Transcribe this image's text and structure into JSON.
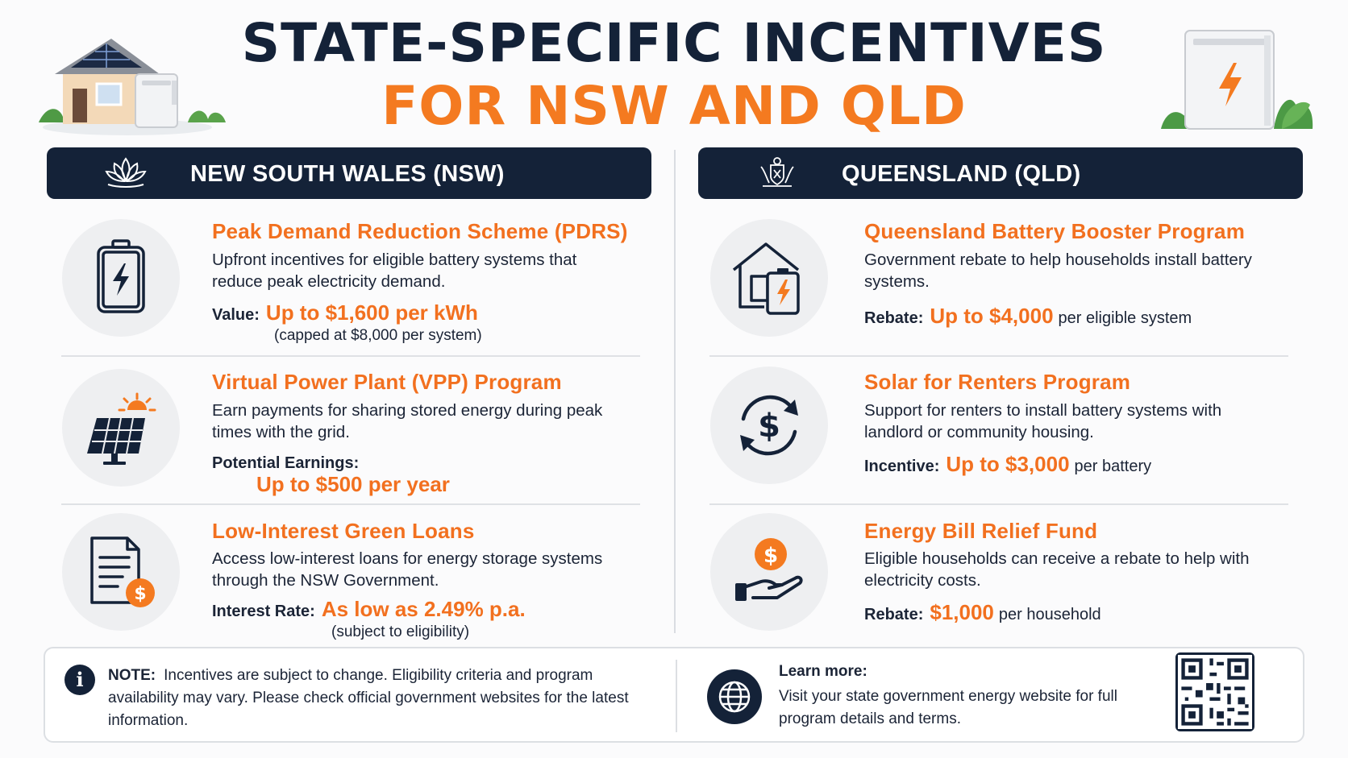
{
  "title": {
    "line1": "STATE-SPECIFIC INCENTIVES",
    "line2": "FOR NSW AND QLD"
  },
  "colors": {
    "navy": "#142238",
    "orange": "#f2701f",
    "circle_bg": "#eeeff1"
  },
  "nsw": {
    "header": "NEW SOUTH WALES (NSW)",
    "header_icon": "waratah-flower-icon",
    "items": [
      {
        "icon": "battery-icon",
        "title": "Peak Demand Reduction Scheme (PDRS)",
        "desc": "Upfront incentives for eligible battery systems that reduce peak electricity demand.",
        "value_label": "Value:",
        "value": "Up to $1,600 per kWh",
        "sub": "(capped at $8,000 per system)"
      },
      {
        "icon": "solar-panel-icon",
        "title": "Virtual Power Plant (VPP) Program",
        "desc": "Earn payments for sharing stored energy during peak times with the grid.",
        "value_label": "Potential Earnings:",
        "value": "Up to $500 per year"
      },
      {
        "icon": "document-dollar-icon",
        "title": "Low-Interest Green Loans",
        "desc": "Access low-interest loans for energy storage systems through the NSW Government.",
        "value_label": "Interest Rate:",
        "value": "As low as 2.49% p.a.",
        "sub": "(subject to eligibility)"
      }
    ]
  },
  "qld": {
    "header": "QUEENSLAND (QLD)",
    "header_icon": "coat-of-arms-icon",
    "items": [
      {
        "icon": "house-battery-icon",
        "title": "Queensland Battery Booster Program",
        "desc": "Government rebate to help households install battery systems.",
        "value_label": "Rebate:",
        "value": "Up to $4,000",
        "suffix": "per eligible system"
      },
      {
        "icon": "dollar-cycle-icon",
        "title": "Solar for Renters Program",
        "desc": "Support for renters to install battery systems with landlord or community housing.",
        "value_label": "Incentive:",
        "value": "Up to $3,000",
        "suffix": "per battery"
      },
      {
        "icon": "hand-coin-icon",
        "title": "Energy Bill Relief Fund",
        "desc": "Eligible households can receive a rebate to help with electricity costs.",
        "value_label": "Rebate:",
        "value": "$1,000",
        "suffix": "per household"
      }
    ]
  },
  "note": {
    "label": "NOTE:",
    "text": "Incentives are subject to change. Eligibility criteria and program availability may vary. Please check official government websites for the latest information."
  },
  "learn_more": {
    "title": "Learn more:",
    "text": "Visit your state government energy website for full program details and terms."
  }
}
